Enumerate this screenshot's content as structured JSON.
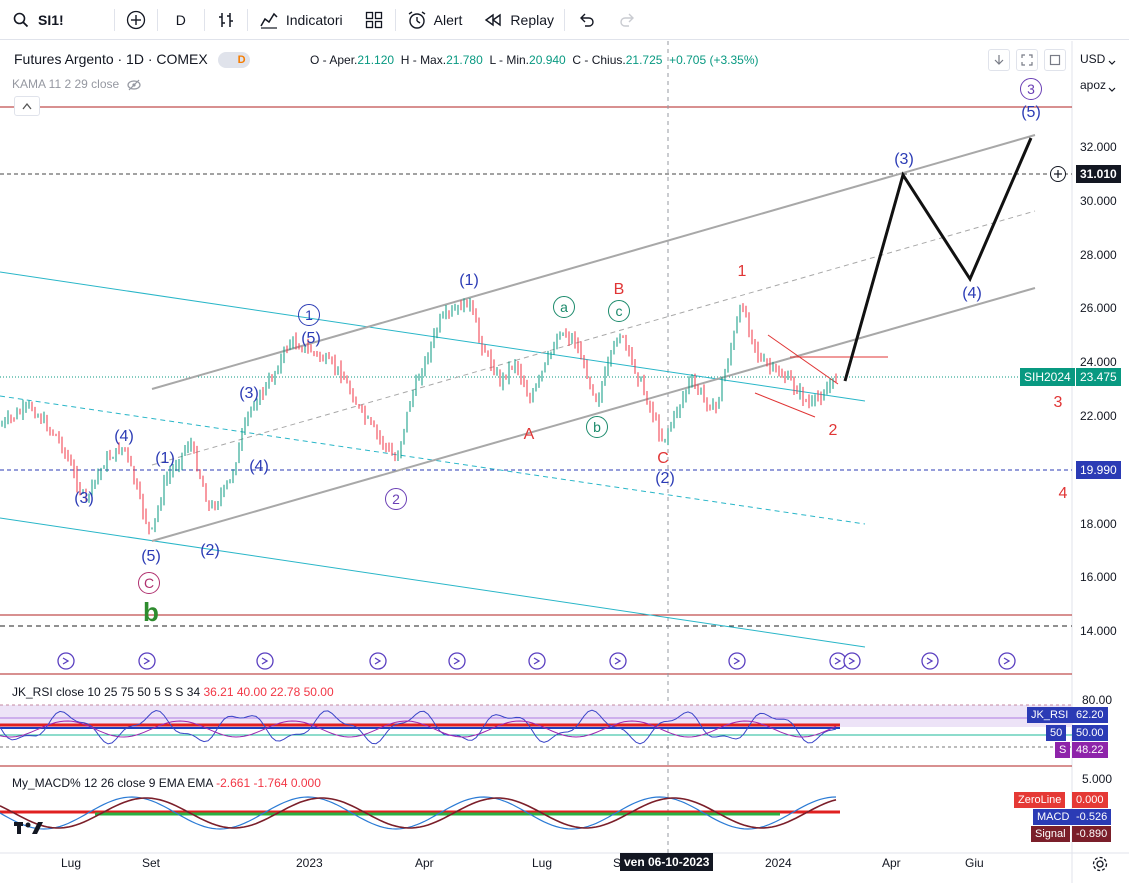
{
  "toolbar": {
    "symbol": "SI1!",
    "interval": "D",
    "indicators_label": "Indicatori",
    "alert_label": "Alert",
    "replay_label": "Replay"
  },
  "legend": {
    "title": "Futures Argento · 1D · COMEX",
    "badge": "D",
    "ohlc": {
      "o_label": "O - Aper.",
      "o": "21.120",
      "h_label": "H - Max.",
      "h": "21.780",
      "l_label": "L - Min.",
      "l": "20.940",
      "c_label": "C - Chius.",
      "c": "21.725",
      "change": "+0.705 (+3.35%)"
    },
    "kama": "KAMA 11 2 29 close"
  },
  "price_axis": {
    "currency": "USD",
    "scale_mode": "apoz",
    "ticks": [
      "32.000",
      "30.000",
      "28.000",
      "26.000",
      "24.000",
      "22.000",
      "20.000",
      "18.000",
      "16.000",
      "14.000"
    ],
    "tags": {
      "target": "31.010",
      "contract": "SIH2024",
      "last": "23.475",
      "support": "19.990"
    }
  },
  "time_axis": {
    "ticks": [
      "Lug",
      "Set",
      "2023",
      "Apr",
      "Lug",
      "S",
      "2024",
      "Apr",
      "Giu"
    ],
    "crosshair_label": "ven 06-10-2023"
  },
  "waves": {
    "blue_labels": [
      "(3)",
      "(4)",
      "(5)",
      "(1)",
      "(2)",
      "(3)",
      "(4)",
      "(5)",
      "(1)",
      "(2)",
      "(3)",
      "(4)",
      "(5)"
    ],
    "circled_blue": [
      "1",
      "2",
      "3"
    ],
    "red_labels": [
      "A",
      "B",
      "C",
      "1",
      "2",
      "3",
      "4"
    ],
    "green_circled": [
      "a",
      "b",
      "c"
    ],
    "purple_circled": [
      "C"
    ],
    "big_label": "b"
  },
  "rsi": {
    "label": "JK_RSI close 10 25 75 50 5 S S 34",
    "values": [
      "36.21",
      "40.00",
      "22.78",
      "50.00"
    ],
    "axis_top": "80.00",
    "tags": {
      "name": "JK_RSI",
      "value": "62.20",
      "mid_label": "50",
      "mid_value": "50.00",
      "s_label": "S",
      "s_value": "48.22"
    }
  },
  "macd": {
    "label": "My_MACD% 12 26 close 9 EMA EMA",
    "values": [
      "-2.661",
      "-1.764",
      "0.000"
    ],
    "axis_top": "5.000",
    "tags": {
      "zero_label": "ZeroLine",
      "zero_value": "0.000",
      "macd_label": "MACD",
      "macd_value": "-0.526",
      "signal_label": "Signal",
      "signal_value": "-0.890"
    }
  },
  "colors": {
    "up": "#089981",
    "down": "#f23645",
    "wave_blue": "#2b3bb5",
    "wave_red": "#e03535",
    "channel_cyan": "#29b6c8",
    "channel_gray": "#a8a8a8"
  }
}
